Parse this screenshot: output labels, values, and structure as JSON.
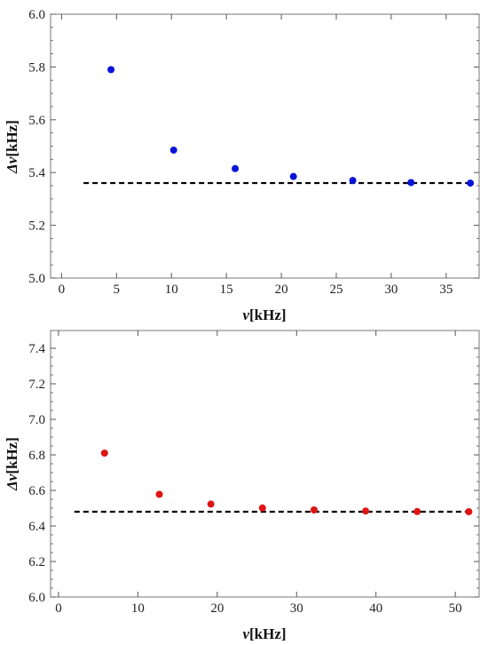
{
  "chart_data": [
    {
      "type": "scatter",
      "xlabel_symbol": "ν",
      "xlabel_unit": "[kHz]",
      "ylabel_symbol": "Δν",
      "ylabel_unit": "[kHz]",
      "xlim": [
        -1,
        38
      ],
      "ylim": [
        5.0,
        6.0
      ],
      "xticks": [
        0,
        5,
        10,
        15,
        20,
        25,
        30,
        35
      ],
      "yticks": [
        5.0,
        5.2,
        5.4,
        5.6,
        5.8,
        6.0
      ],
      "ytick_decimals": 1,
      "marker_color": "#0a14d8",
      "points": [
        {
          "x": 4.5,
          "y": 5.79
        },
        {
          "x": 10.2,
          "y": 5.485
        },
        {
          "x": 15.8,
          "y": 5.415
        },
        {
          "x": 21.1,
          "y": 5.385
        },
        {
          "x": 26.5,
          "y": 5.37
        },
        {
          "x": 31.8,
          "y": 5.362
        },
        {
          "x": 37.2,
          "y": 5.36
        }
      ],
      "reference_line": {
        "y": 5.36,
        "x_from": 2,
        "x_to": 37.5,
        "style": "dashed",
        "color": "#000000"
      }
    },
    {
      "type": "scatter",
      "xlabel_symbol": "ν",
      "xlabel_unit": "[kHz]",
      "ylabel_symbol": "Δν",
      "ylabel_unit": "[kHz]",
      "xlim": [
        -1,
        53
      ],
      "ylim": [
        6.0,
        7.5
      ],
      "xticks": [
        0,
        10,
        20,
        30,
        40,
        50
      ],
      "yticks": [
        6.0,
        6.2,
        6.4,
        6.6,
        6.8,
        7.0,
        7.2,
        7.4
      ],
      "ytick_decimals": 1,
      "marker_color": "#e01414",
      "points": [
        {
          "x": 5.8,
          "y": 6.81
        },
        {
          "x": 12.7,
          "y": 6.578
        },
        {
          "x": 19.2,
          "y": 6.523
        },
        {
          "x": 25.7,
          "y": 6.501
        },
        {
          "x": 32.2,
          "y": 6.49
        },
        {
          "x": 38.7,
          "y": 6.484
        },
        {
          "x": 45.2,
          "y": 6.481
        },
        {
          "x": 51.7,
          "y": 6.48
        }
      ],
      "reference_line": {
        "y": 6.48,
        "x_from": 2,
        "x_to": 52,
        "style": "dashed",
        "color": "#000000"
      }
    }
  ]
}
